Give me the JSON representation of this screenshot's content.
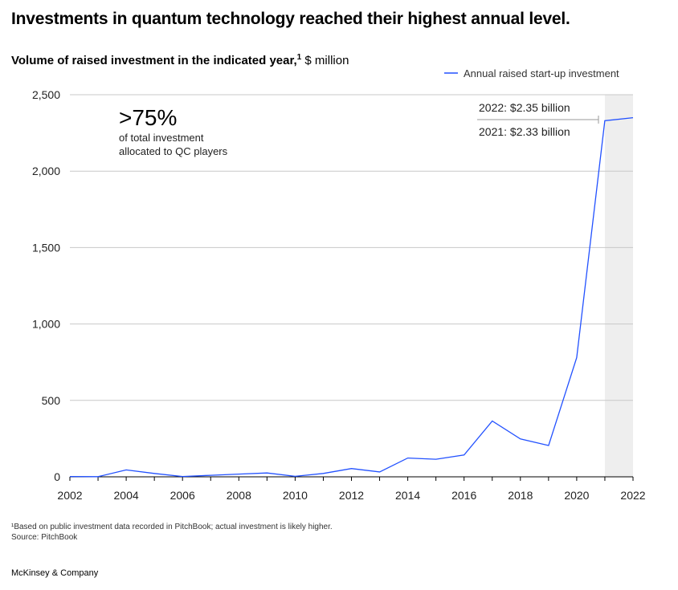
{
  "headline": "Investments in quantum technology reached their highest annual level.",
  "subtitle": {
    "bold": "Volume of raised investment in the indicated year,",
    "sup": "1",
    "unit": " $ million"
  },
  "callout": {
    "big": ">75%",
    "line1": "of total investment",
    "line2": "allocated to QC players"
  },
  "annotations": {
    "a2022": "2022:  $2.35 billion",
    "a2021": "2021:  $2.33 billion"
  },
  "footnote": {
    "line1": "¹Based on public investment data recorded in PitchBook; actual investment is likely higher.",
    "line2": "Source: PitchBook"
  },
  "brand": "McKinsey & Company",
  "chart_data": {
    "type": "line",
    "x": [
      2002,
      2003,
      2004,
      2005,
      2006,
      2007,
      2008,
      2009,
      2010,
      2011,
      2012,
      2013,
      2014,
      2015,
      2016,
      2017,
      2018,
      2019,
      2020,
      2021,
      2022
    ],
    "series": [
      {
        "name": "Annual raised start-up investment",
        "color": "#2251ff",
        "values": [
          2,
          1,
          45,
          22,
          2,
          10,
          18,
          25,
          3,
          22,
          54,
          32,
          123,
          115,
          143,
          365,
          248,
          205,
          780,
          2330,
          2350
        ]
      }
    ],
    "xticks": [
      "2002",
      "2004",
      "2006",
      "2008",
      "2010",
      "2012",
      "2014",
      "2016",
      "2018",
      "2020",
      "2022"
    ],
    "yticks": [
      "0",
      "500",
      "1,000",
      "1,500",
      "2,000",
      "2,500"
    ],
    "xlim": [
      2002,
      2022
    ],
    "ylim": [
      0,
      2500
    ],
    "grid": true,
    "legend_position": "top-right",
    "highlight_range": [
      2021,
      2022
    ],
    "highlight_color": "#eeeeee"
  }
}
